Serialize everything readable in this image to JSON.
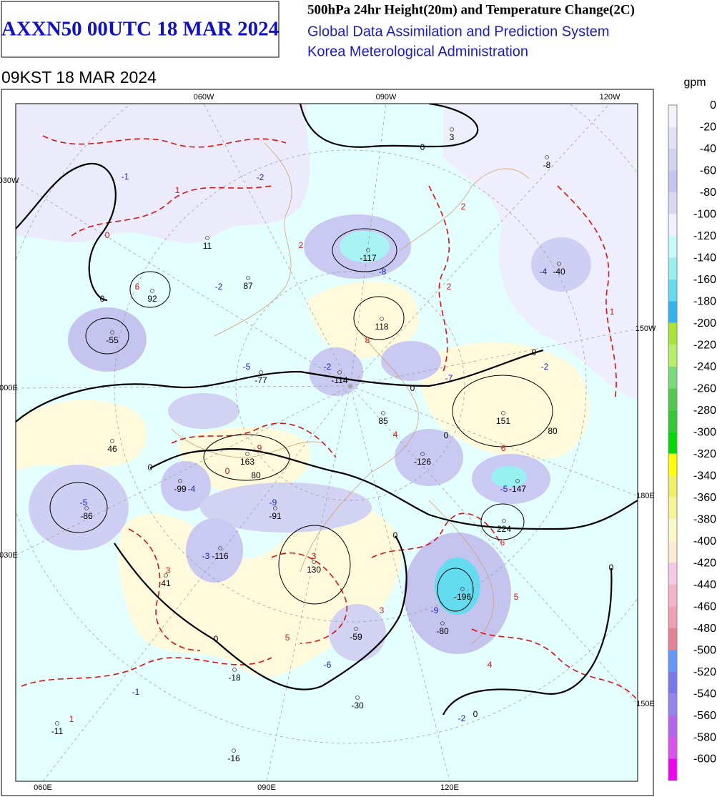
{
  "header": {
    "product": "AXXN50 00UTC 18 MAR 2024",
    "title": "500hPa 24hr Height(20m) and Temperature Change(2C)",
    "system": "Global Data Assimilation and Prediction System",
    "agency": "Korea Meterological Administration",
    "valid_time": "09KST 18 MAR 2024"
  },
  "colorbar": {
    "unit": "gpm",
    "values": [
      0,
      -20,
      -40,
      -60,
      -80,
      -100,
      -120,
      -140,
      -160,
      -180,
      -200,
      -220,
      -240,
      -260,
      -280,
      -300,
      -320,
      -340,
      -360,
      -380,
      -400,
      -420,
      -440,
      -460,
      -480,
      -500,
      -520,
      -540,
      -560,
      -580,
      -600
    ],
    "colors": [
      "#f2f2fb",
      "#e2e2f7",
      "#d2d2f2",
      "#c4c4ee",
      "#d8d8f4",
      "#eef0ff",
      "#c8fafa",
      "#96f0f0",
      "#64dcf0",
      "#32b4f0",
      "#a8e632",
      "#b4f064",
      "#78dc78",
      "#50c850",
      "#32c832",
      "#00dc00",
      "#ffff00",
      "#f0f064",
      "#f5f596",
      "#fafac8",
      "#faebd2",
      "#f5c8e6",
      "#f5b4c8",
      "#f0a0b4",
      "#e68296",
      "#6496ff",
      "#7878f0",
      "#9682f0",
      "#b464f0",
      "#dc50f0",
      "#f000f0"
    ]
  },
  "grid_labels": [
    "060W",
    "090W",
    "120W",
    "030W",
    "150W",
    "000E",
    "180E",
    "030E",
    "150E",
    "060E",
    "090E",
    "120E"
  ],
  "height_centers": [
    "3",
    "-8",
    "11",
    "92",
    "87",
    "-117",
    "-40",
    "118",
    "-55",
    "-77",
    "-114",
    "85",
    "151",
    "46",
    "163",
    "-126",
    "-99",
    "-147",
    "-86",
    "-91",
    "224",
    "-116",
    "130",
    "41",
    "-196",
    "-59",
    "-80",
    "-18",
    "-30",
    "-11",
    "-16"
  ],
  "contour_labels": [
    "0",
    "0",
    "0",
    "0",
    "0",
    "0",
    "0",
    "0",
    "0",
    "0",
    "80",
    "80"
  ],
  "warm_labels": [
    "1",
    "2",
    "0",
    "6",
    "2",
    "2",
    "1",
    "8",
    "4",
    "0",
    "9",
    "6",
    "3",
    "6",
    "5",
    "3",
    "5",
    "4",
    "1",
    "3"
  ],
  "cold_labels": [
    "-1",
    "-2",
    "-8",
    "-4",
    "-2",
    "-5",
    "-2",
    "-7",
    "-2",
    "-4",
    "-9",
    "-5",
    "-5",
    "-3",
    "-9",
    "-6",
    "-1",
    "-2"
  ]
}
